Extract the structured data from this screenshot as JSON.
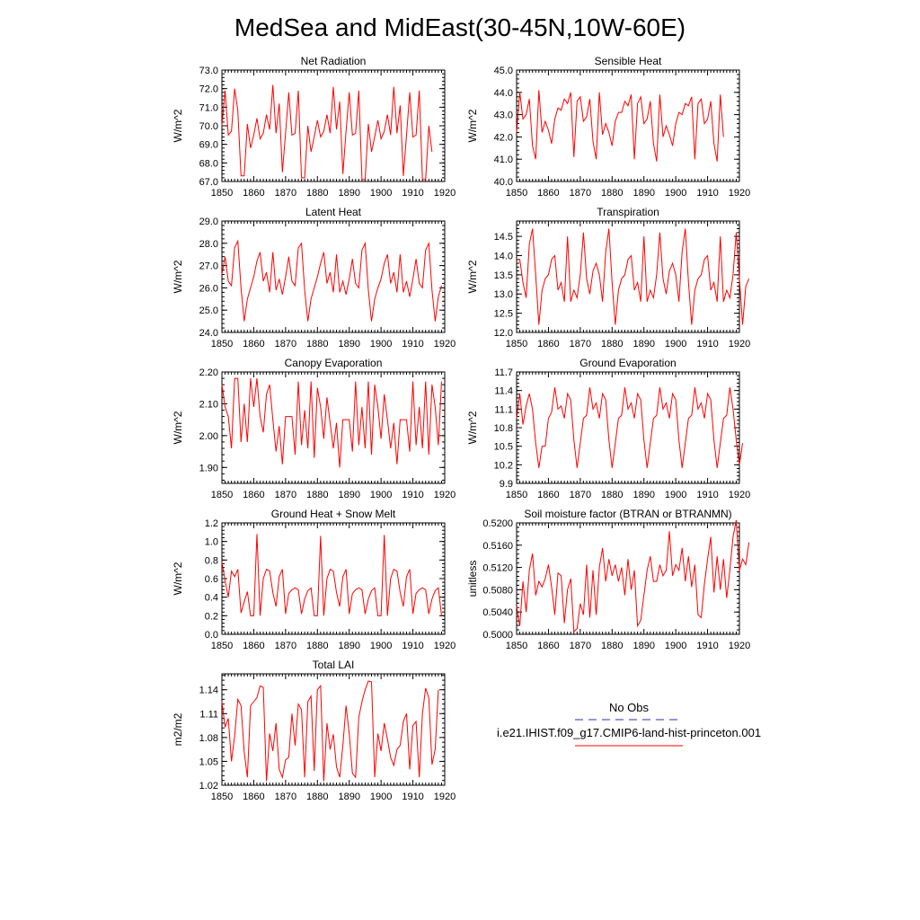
{
  "figure": {
    "title": "MedSea and MidEast(30-45N,10W-60E)",
    "series_color": "#ff0000",
    "obs_color": "#2b2bb5"
  },
  "legend": {
    "obs_label": "No Obs",
    "model_label": "i.e21.IHIST.f09_g17.CMIP6-land-hist-princeton.001",
    "obs_style": "dashed",
    "model_style": "solid"
  },
  "chart_data": [
    {
      "type": "line",
      "title": "Net Radiation",
      "ylabel": "W/m^2",
      "xlim": [
        1850,
        1920
      ],
      "ylim": [
        67.0,
        73.0
      ],
      "xticks": [
        1850,
        1860,
        1870,
        1880,
        1890,
        1900,
        1910,
        1920
      ],
      "yticks": [
        67.0,
        68.0,
        69.0,
        70.0,
        71.0,
        72.0,
        73.0
      ],
      "ydec": 1,
      "x_start": 1850,
      "values": [
        70.0,
        71.9,
        69.5,
        69.7,
        72.0,
        70.8,
        67.3,
        67.3,
        70.1,
        68.8,
        69.5,
        70.4,
        69.3,
        69.6,
        70.6,
        69.8,
        72.2,
        69.6,
        71.2,
        67.5,
        69.6,
        71.8,
        69.5,
        69.6,
        71.9,
        67.2,
        67.2,
        70.0,
        68.6,
        69.4,
        70.3,
        69.4,
        69.7,
        70.6,
        69.6,
        72.1,
        69.8,
        71.3,
        67.4,
        69.7,
        71.8,
        69.5,
        69.6,
        71.9,
        67.1,
        67.1,
        70.1,
        68.6,
        69.4,
        70.3,
        69.3,
        69.7,
        70.6,
        69.5,
        72.1,
        69.6,
        71.1,
        67.3,
        69.5,
        71.8,
        69.4,
        69.5,
        71.9,
        67.1,
        67.1,
        70.0,
        68.6
      ]
    },
    {
      "type": "line",
      "title": "Sensible Heat",
      "ylabel": "W/m^2",
      "xlim": [
        1850,
        1920
      ],
      "ylim": [
        40.0,
        45.0
      ],
      "xticks": [
        1850,
        1860,
        1870,
        1880,
        1890,
        1900,
        1910,
        1920
      ],
      "yticks": [
        40.0,
        41.0,
        42.0,
        43.0,
        44.0,
        45.0
      ],
      "ydec": 1,
      "x_start": 1850,
      "values": [
        42.2,
        44.0,
        42.8,
        43.0,
        43.7,
        41.6,
        41.0,
        44.1,
        42.2,
        42.7,
        42.3,
        41.7,
        42.8,
        43.3,
        43.2,
        43.7,
        43.5,
        44.0,
        41.1,
        43.6,
        43.8,
        42.7,
        42.9,
        43.7,
        41.8,
        41.0,
        44.0,
        42.1,
        42.6,
        42.2,
        41.6,
        42.7,
        43.1,
        43.1,
        43.6,
        43.4,
        43.9,
        41.0,
        43.5,
        43.8,
        42.6,
        42.8,
        43.6,
        41.7,
        40.9,
        43.9,
        42.0,
        42.5,
        42.1,
        41.6,
        42.6,
        43.1,
        43.0,
        43.5,
        43.4,
        43.8,
        41.0,
        43.5,
        43.7,
        42.6,
        42.8,
        43.6,
        41.7,
        40.9,
        43.9,
        42.0
      ]
    },
    {
      "type": "line",
      "title": "Latent Heat",
      "ylabel": "W/m^2",
      "xlim": [
        1850,
        1920
      ],
      "ylim": [
        24.0,
        29.0
      ],
      "xticks": [
        1850,
        1860,
        1870,
        1880,
        1890,
        1900,
        1910,
        1920
      ],
      "yticks": [
        24.0,
        25.0,
        26.0,
        27.0,
        28.0,
        29.0
      ],
      "ydec": 1,
      "x_start": 1850,
      "values": [
        26.6,
        27.4,
        26.3,
        26.1,
        27.8,
        28.1,
        26.0,
        24.5,
        25.5,
        26.0,
        26.5,
        27.2,
        27.6,
        26.3,
        26.7,
        25.8,
        27.6,
        25.9,
        26.4,
        25.7,
        26.5,
        27.4,
        26.3,
        26.1,
        27.8,
        28.0,
        25.9,
        24.5,
        25.5,
        26.0,
        26.5,
        27.1,
        27.6,
        26.2,
        26.7,
        25.8,
        27.5,
        25.8,
        26.3,
        25.7,
        26.4,
        27.3,
        26.2,
        26.0,
        27.7,
        28.0,
        25.9,
        24.5,
        25.5,
        26.0,
        26.4,
        27.1,
        27.5,
        26.2,
        26.7,
        25.8,
        27.5,
        25.8,
        26.3,
        25.6,
        26.4,
        27.3,
        26.2,
        26.0,
        27.7,
        28.0,
        25.9,
        24.5,
        25.6,
        26.1
      ]
    },
    {
      "type": "line",
      "title": "Transpiration",
      "ylabel": "W/m^2",
      "xlim": [
        1850,
        1920
      ],
      "ylim": [
        12.0,
        14.9
      ],
      "xticks": [
        1850,
        1860,
        1870,
        1880,
        1890,
        1900,
        1910,
        1920
      ],
      "yticks": [
        12.0,
        12.5,
        13.0,
        13.5,
        14.0,
        14.5
      ],
      "ydec": 1,
      "x_start": 1850,
      "values": [
        13.9,
        13.9,
        13.3,
        12.9,
        14.3,
        14.7,
        13.5,
        12.2,
        13.1,
        13.4,
        13.5,
        13.9,
        14.0,
        13.1,
        13.3,
        12.8,
        14.5,
        12.8,
        13.1,
        12.9,
        13.5,
        14.6,
        13.4,
        13.0,
        13.6,
        13.8,
        13.5,
        12.8,
        14.1,
        14.7,
        13.3,
        12.2,
        13.1,
        13.4,
        13.5,
        13.9,
        14.0,
        13.1,
        13.3,
        12.8,
        14.5,
        12.8,
        13.1,
        12.9,
        13.5,
        14.6,
        13.4,
        13.0,
        13.6,
        13.8,
        13.5,
        12.8,
        14.1,
        14.7,
        13.3,
        12.2,
        13.1,
        13.4,
        13.5,
        13.9,
        14.0,
        13.1,
        13.3,
        12.8,
        14.5,
        12.8,
        13.1,
        12.9,
        13.5,
        14.6,
        13.4,
        12.2,
        13.2,
        13.4
      ]
    },
    {
      "type": "line",
      "title": "Canopy Evaporation",
      "ylabel": "W/m^2",
      "xlim": [
        1850,
        1920
      ],
      "ylim": [
        1.85,
        2.2
      ],
      "xticks": [
        1850,
        1860,
        1870,
        1880,
        1890,
        1900,
        1910,
        1920
      ],
      "yticks": [
        1.9,
        2.0,
        2.1,
        2.2
      ],
      "ydec": 2,
      "x_start": 1850,
      "values": [
        2.16,
        2.09,
        2.06,
        1.96,
        2.18,
        2.18,
        1.98,
        2.1,
        1.98,
        2.18,
        2.09,
        2.18,
        2.06,
        2.01,
        2.13,
        2.16,
        2.05,
        1.95,
        2.03,
        1.91,
        2.06,
        2.06,
        2.06,
        1.94,
        2.17,
        1.97,
        2.08,
        1.96,
        2.17,
        1.93,
        2.15,
        2.09,
        1.99,
        2.12,
        2.04,
        1.96,
        2.04,
        1.9,
        2.05,
        2.05,
        2.05,
        1.95,
        2.17,
        1.97,
        2.09,
        1.96,
        2.17,
        1.94,
        2.16,
        2.09,
        1.99,
        2.13,
        2.05,
        1.96,
        2.04,
        1.91,
        2.05,
        2.05,
        2.05,
        1.95,
        2.17,
        1.97,
        2.09,
        1.96,
        2.17,
        1.94,
        2.16,
        2.09,
        1.97,
        2.17
      ]
    },
    {
      "type": "line",
      "title": "Ground Evaporation",
      "ylabel": "W/m^2",
      "xlim": [
        1850,
        1920
      ],
      "ylim": [
        9.9,
        11.7
      ],
      "xticks": [
        1850,
        1860,
        1870,
        1880,
        1890,
        1900,
        1910,
        1920
      ],
      "yticks": [
        9.9,
        10.2,
        10.5,
        10.8,
        11.1,
        11.4,
        11.7
      ],
      "ydec": 1,
      "x_start": 1850,
      "values": [
        10.95,
        11.35,
        10.85,
        11.15,
        11.35,
        11.1,
        10.55,
        10.15,
        10.5,
        10.5,
        10.95,
        11.05,
        11.45,
        11.1,
        11.15,
        10.95,
        11.35,
        11.25,
        10.6,
        10.15,
        10.55,
        10.95,
        11.0,
        11.45,
        11.1,
        11.2,
        10.95,
        11.35,
        11.25,
        10.6,
        10.15,
        10.55,
        10.95,
        11.0,
        11.45,
        11.1,
        11.2,
        10.95,
        11.35,
        11.25,
        10.6,
        10.15,
        10.55,
        10.95,
        11.0,
        11.45,
        11.1,
        11.2,
        10.95,
        11.35,
        11.25,
        10.6,
        10.15,
        10.55,
        10.95,
        11.0,
        11.45,
        11.1,
        11.2,
        10.95,
        11.35,
        11.25,
        10.6,
        10.15,
        10.55,
        10.95,
        11.0,
        11.45,
        11.1,
        10.6,
        10.2,
        10.55
      ]
    },
    {
      "type": "line",
      "title": "Ground Heat + Snow Melt",
      "ylabel": "W/m^2",
      "xlim": [
        1850,
        1920
      ],
      "ylim": [
        0.0,
        1.2
      ],
      "xticks": [
        1850,
        1860,
        1870,
        1880,
        1890,
        1900,
        1910,
        1920
      ],
      "yticks": [
        0.0,
        0.2,
        0.4,
        0.6,
        0.8,
        1.0,
        1.2
      ],
      "ydec": 1,
      "x_start": 1850,
      "values": [
        0.78,
        0.58,
        0.4,
        0.68,
        0.62,
        0.7,
        0.23,
        0.35,
        0.46,
        0.2,
        0.2,
        1.08,
        0.2,
        0.6,
        0.7,
        0.68,
        0.45,
        0.3,
        0.62,
        0.7,
        0.22,
        0.44,
        0.48,
        0.5,
        0.48,
        0.22,
        0.38,
        0.47,
        0.5,
        0.2,
        0.2,
        1.06,
        0.2,
        0.6,
        0.7,
        0.68,
        0.45,
        0.3,
        0.62,
        0.7,
        0.22,
        0.44,
        0.48,
        0.5,
        0.48,
        0.22,
        0.38,
        0.47,
        0.5,
        0.2,
        0.2,
        1.07,
        0.2,
        0.6,
        0.7,
        0.68,
        0.45,
        0.3,
        0.62,
        0.7,
        0.22,
        0.44,
        0.48,
        0.5,
        0.48,
        0.22,
        0.38,
        0.47,
        0.5,
        0.2
      ]
    },
    {
      "type": "line",
      "title": "Soil moisture factor (BTRAN or BTRANMN)",
      "ylabel": "unitless",
      "xlim": [
        1850,
        1920
      ],
      "ylim": [
        0.5,
        0.52
      ],
      "xticks": [
        1850,
        1860,
        1870,
        1880,
        1890,
        1900,
        1910,
        1920
      ],
      "yticks": [
        0.5,
        0.504,
        0.508,
        0.512,
        0.516,
        0.52
      ],
      "ydec": 4,
      "x_start": 1850,
      "values": [
        0.505,
        0.5015,
        0.5095,
        0.504,
        0.5115,
        0.5145,
        0.507,
        0.5095,
        0.5085,
        0.51,
        0.5125,
        0.5085,
        0.5035,
        0.511,
        0.5105,
        0.502,
        0.508,
        0.51,
        0.5005,
        0.501,
        0.5055,
        0.5035,
        0.5125,
        0.503,
        0.5115,
        0.5035,
        0.512,
        0.5155,
        0.5095,
        0.5135,
        0.5105,
        0.5125,
        0.5095,
        0.512,
        0.507,
        0.5135,
        0.508,
        0.5115,
        0.5015,
        0.5025,
        0.507,
        0.5115,
        0.514,
        0.5095,
        0.5095,
        0.5125,
        0.5105,
        0.5115,
        0.5185,
        0.5105,
        0.5125,
        0.5115,
        0.5155,
        0.5095,
        0.514,
        0.5085,
        0.5125,
        0.5035,
        0.503,
        0.509,
        0.5135,
        0.5175,
        0.5075,
        0.514,
        0.508,
        0.5135,
        0.5065,
        0.5115,
        0.5175,
        0.5205,
        0.5115,
        0.5135,
        0.5125,
        0.5165
      ]
    },
    {
      "type": "line",
      "title": "Total LAI",
      "ylabel": "m2/m2",
      "xlim": [
        1850,
        1920
      ],
      "ylim": [
        1.02,
        1.16
      ],
      "xticks": [
        1850,
        1860,
        1870,
        1880,
        1890,
        1900,
        1910,
        1920
      ],
      "yticks": [
        1.02,
        1.05,
        1.08,
        1.11,
        1.14
      ],
      "ydec": 2,
      "x_start": 1850,
      "values": [
        1.125,
        1.093,
        1.104,
        1.05,
        1.082,
        1.128,
        1.12,
        1.062,
        1.03,
        1.12,
        1.125,
        1.13,
        1.145,
        1.143,
        1.025,
        1.085,
        1.063,
        1.098,
        1.04,
        1.03,
        1.052,
        1.055,
        1.11,
        1.07,
        1.122,
        1.115,
        1.03,
        1.125,
        1.132,
        1.038,
        1.14,
        1.145,
        1.025,
        1.098,
        1.065,
        1.084,
        1.043,
        1.03,
        1.07,
        1.12,
        1.085,
        1.035,
        1.03,
        1.105,
        1.125,
        1.14,
        1.151,
        1.15,
        1.03,
        1.085,
        1.063,
        1.098,
        1.078,
        1.055,
        1.045,
        1.065,
        1.07,
        1.1,
        1.11,
        1.04,
        1.095,
        1.1,
        1.03,
        1.11,
        1.142,
        1.13,
        1.046,
        1.065,
        1.14
      ]
    }
  ]
}
